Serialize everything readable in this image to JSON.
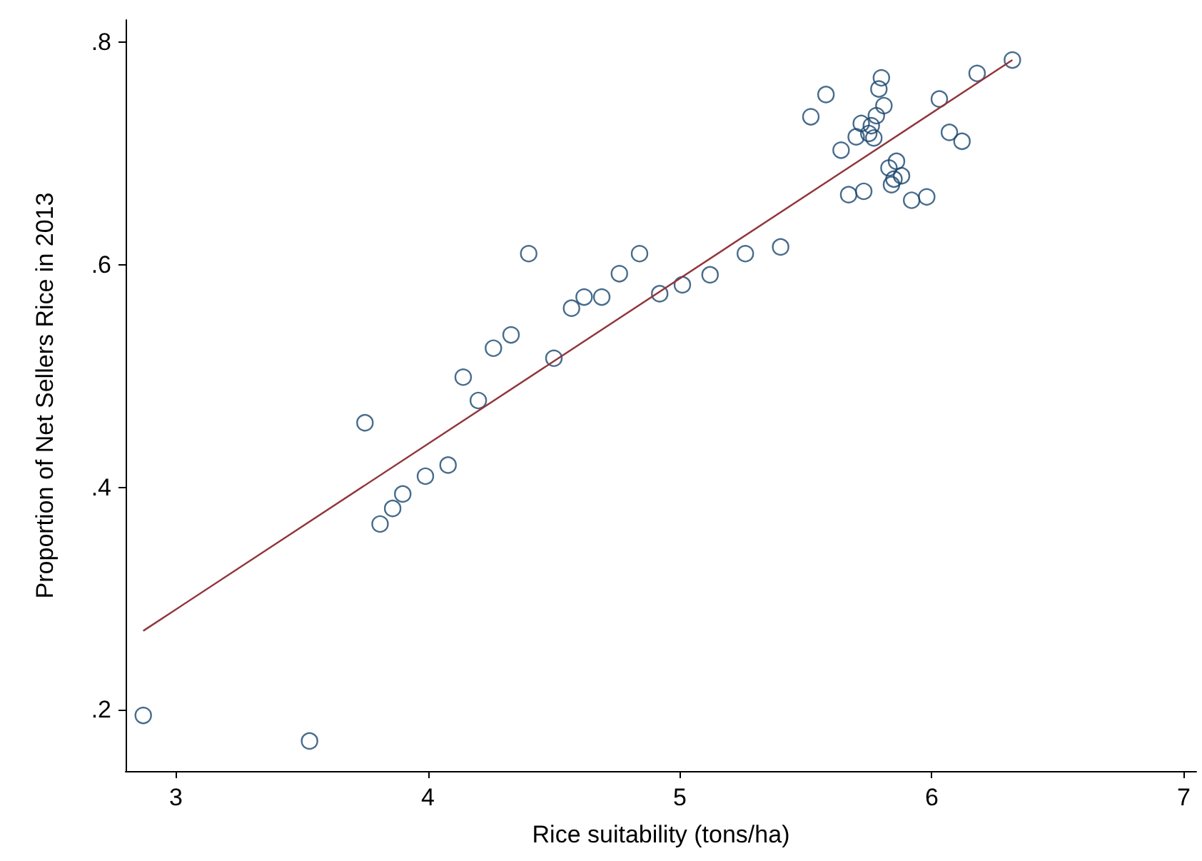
{
  "chart_data": {
    "type": "scatter",
    "xlabel": "Rice suitability (tons/ha)",
    "ylabel": "Proportion of Net Sellers Rice in 2013",
    "xlim": [
      2.8,
      7.05
    ],
    "ylim": [
      0.145,
      0.82
    ],
    "xticks": [
      3,
      4,
      5,
      6,
      7
    ],
    "yticks": [
      {
        "value": 0.2,
        "label": ".2"
      },
      {
        "value": 0.4,
        "label": ".4"
      },
      {
        "value": 0.6,
        "label": ".6"
      },
      {
        "value": 0.8,
        "label": ".8"
      }
    ],
    "grid": false,
    "marker": "circle",
    "series": [
      {
        "color": "#1a476f",
        "x": [
          2.87,
          3.53,
          3.75,
          3.81,
          3.86,
          3.9,
          3.99,
          4.08,
          4.14,
          4.2,
          4.26,
          4.33,
          4.4,
          4.5,
          4.57,
          4.62,
          4.69,
          4.76,
          4.84,
          4.92,
          5.01,
          5.12,
          5.26,
          5.4,
          5.52,
          5.58,
          5.64,
          5.7,
          5.72,
          5.75,
          5.76,
          5.77,
          5.78,
          5.79,
          5.8,
          5.81,
          5.67,
          5.73,
          5.83,
          5.86,
          5.88,
          5.85,
          5.84,
          5.92,
          5.98,
          6.03,
          6.07,
          6.12,
          6.18,
          6.32
        ],
        "values": [
          0.195,
          0.172,
          0.458,
          0.367,
          0.381,
          0.394,
          0.41,
          0.42,
          0.499,
          0.478,
          0.525,
          0.537,
          0.61,
          0.516,
          0.561,
          0.571,
          0.571,
          0.592,
          0.61,
          0.574,
          0.582,
          0.591,
          0.61,
          0.616,
          0.733,
          0.753,
          0.703,
          0.715,
          0.727,
          0.718,
          0.725,
          0.714,
          0.734,
          0.758,
          0.768,
          0.743,
          0.663,
          0.666,
          0.687,
          0.693,
          0.68,
          0.677,
          0.672,
          0.658,
          0.661,
          0.749,
          0.719,
          0.711,
          0.772,
          0.784
        ]
      },
      {
        "type": "line",
        "color": "#90353b",
        "marker": "none",
        "x": [
          2.87,
          6.32
        ],
        "values": [
          0.271,
          0.784
        ]
      }
    ]
  }
}
